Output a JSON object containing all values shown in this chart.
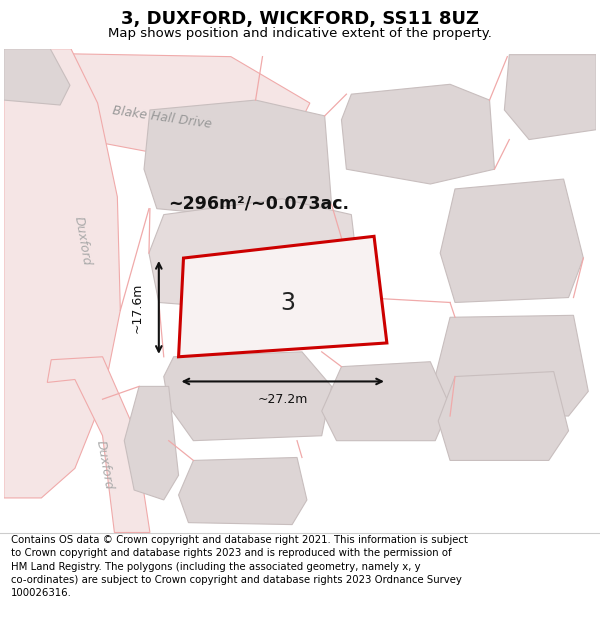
{
  "title": "3, DUXFORD, WICKFORD, SS11 8UZ",
  "subtitle": "Map shows position and indicative extent of the property.",
  "footer": "Contains OS data © Crown copyright and database right 2021. This information is subject\nto Crown copyright and database rights 2023 and is reproduced with the permission of\nHM Land Registry. The polygons (including the associated geometry, namely x, y\nco-ordinates) are subject to Crown copyright and database rights 2023 Ordnance Survey\n100026316.",
  "area_label": "~296m²/~0.073ac.",
  "width_label": "~27.2m",
  "height_label": "~17.6m",
  "plot_number": "3",
  "bg_color": "#ffffff",
  "map_bg": "#f5eeed",
  "road_color": "#f0aaaa",
  "road_fill": "#f5e5e5",
  "building_color": "#c8bebe",
  "building_fill": "#ddd5d5",
  "plot_color": "#cc0000",
  "plot_fill": "#f8f2f2",
  "dim_color": "#111111",
  "title_fontsize": 13,
  "subtitle_fontsize": 9.5,
  "footer_fontsize": 7.3,
  "road_label_color": "#aaaaaa",
  "blake_label_color": "#999999"
}
